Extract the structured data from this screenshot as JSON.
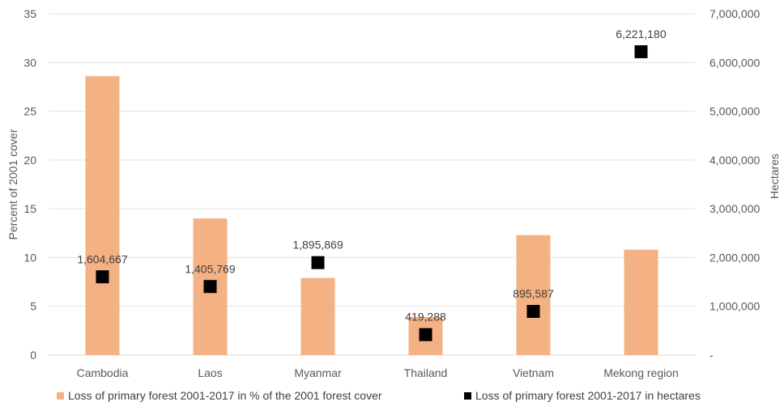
{
  "chart_data": {
    "type": "bar",
    "categories": [
      "Cambodia",
      "Laos",
      "Myanmar",
      "Thailand",
      "Vietnam",
      "Mekong region"
    ],
    "series": [
      {
        "name": "Loss of primary forest 2001-2017 in % of the 2001 forest cover",
        "type": "bar",
        "axis": "left",
        "color": "#F4B183",
        "values": [
          28.6,
          14.0,
          7.9,
          3.9,
          12.3,
          10.8
        ]
      },
      {
        "name": "Loss of primary forest 2001-2017 in hectares",
        "type": "scatter",
        "axis": "right",
        "color": "#000000",
        "values": [
          1604667,
          1405769,
          1895869,
          419288,
          895587,
          6221180
        ],
        "labels": [
          "1,604,667",
          "1,405,769",
          "1,895,869",
          "419,288",
          "895,587",
          "6,221,180"
        ]
      }
    ],
    "y_left": {
      "label": "Percent of 2001 cover",
      "ylim": [
        0,
        35
      ],
      "ticks": [
        "0",
        "5",
        "10",
        "15",
        "20",
        "25",
        "30",
        "35"
      ]
    },
    "y_right": {
      "label": "Hectares",
      "ylim": [
        0,
        7000000
      ],
      "ticks": [
        "-",
        "1,000,000",
        "2,000,000",
        "3,000,000",
        "4,000,000",
        "5,000,000",
        "6,000,000",
        "7,000,000"
      ]
    },
    "grid": true,
    "legend_position": "bottom"
  },
  "legend": {
    "bar_label": "Loss of primary forest 2001-2017 in % of the 2001 forest cover",
    "marker_label": "Loss of primary forest 2001-2017 in hectares"
  }
}
